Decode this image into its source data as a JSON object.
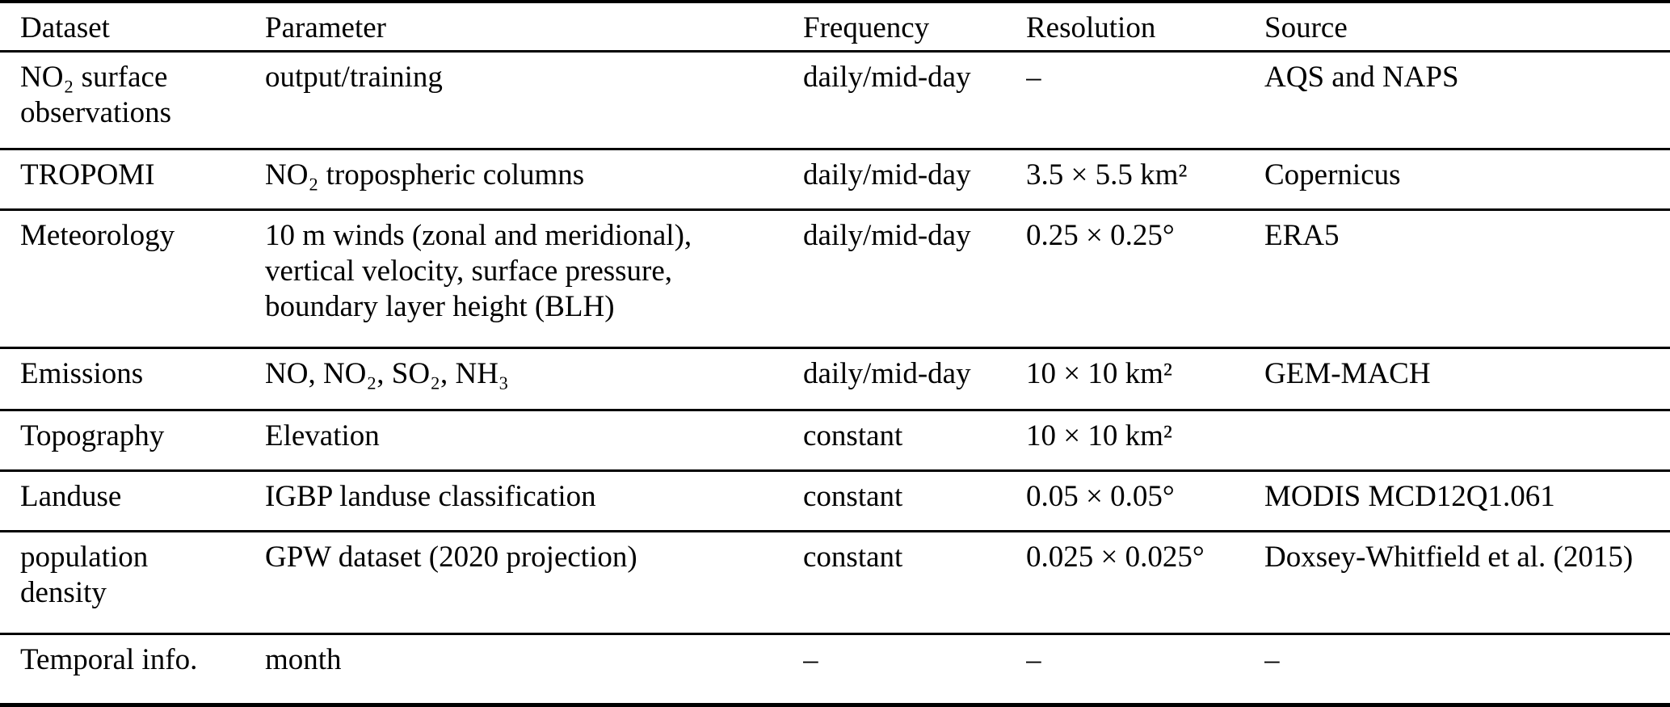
{
  "page": {
    "background_color": "#ffffff",
    "text_color": "#000000",
    "rule_color": "#000000"
  },
  "table": {
    "columns": [
      "Dataset",
      "Parameter",
      "Frequency",
      "Resolution",
      "Source"
    ],
    "rows": [
      {
        "dataset": "NO₂ surface\nobservations",
        "parameter": "output/training",
        "frequency": "daily/mid-day",
        "resolution": "–",
        "source": "AQS and NAPS"
      },
      {
        "dataset": "TROPOMI",
        "parameter": "NO₂ tropospheric columns",
        "frequency": "daily/mid-day",
        "resolution": "3.5 × 5.5 km²",
        "source": "Copernicus"
      },
      {
        "dataset": "Meteorology",
        "parameter": "10 m winds (zonal and meridional),\nvertical velocity, surface pressure,\nboundary layer height (BLH)",
        "frequency": "daily/mid-day",
        "resolution": "0.25 × 0.25°",
        "source": "ERA5"
      },
      {
        "dataset": "Emissions",
        "parameter": "NO, NO₂, SO₂, NH₃",
        "frequency": "daily/mid-day",
        "resolution": "10 × 10 km²",
        "source": "GEM-MACH"
      },
      {
        "dataset": "Topography",
        "parameter": "Elevation",
        "frequency": "constant",
        "resolution": "10 × 10 km²",
        "source": ""
      },
      {
        "dataset": "Landuse",
        "parameter": "IGBP landuse classification",
        "frequency": "constant",
        "resolution": "0.05 × 0.05°",
        "source": "MODIS MCD12Q1.061"
      },
      {
        "dataset": "population\ndensity",
        "parameter": "GPW dataset (2020 projection)",
        "frequency": "constant",
        "resolution": "0.025 × 0.025°",
        "source": "Doxsey-Whitfield et al. (2015)"
      },
      {
        "dataset": "Temporal info.",
        "parameter": "month",
        "frequency": "–",
        "resolution": "–",
        "source": "–"
      }
    ]
  }
}
